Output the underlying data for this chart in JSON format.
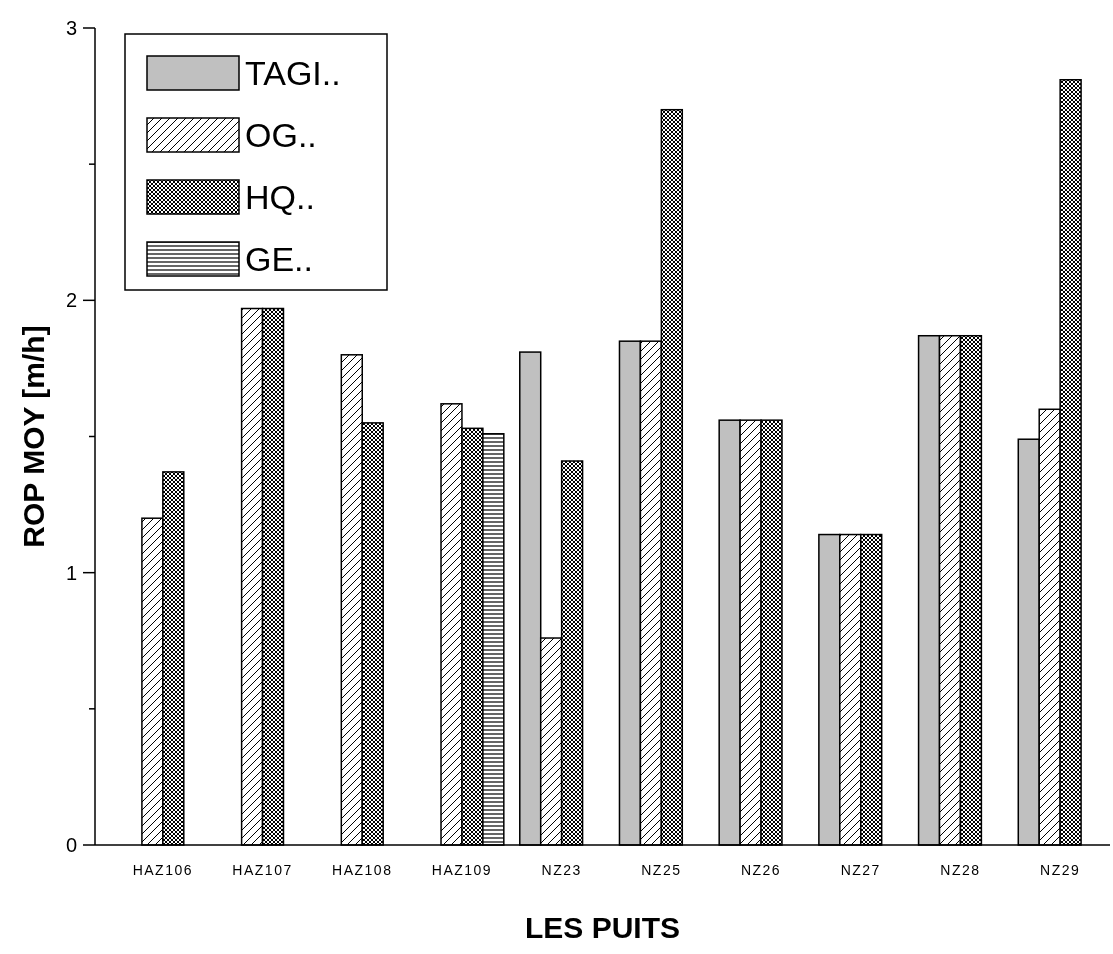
{
  "chart_data": {
    "type": "bar",
    "xlabel": "LES PUITS",
    "ylabel": "ROP MOY [m/h]",
    "categories": [
      "HAZ106",
      "HAZ107",
      "HAZ108",
      "HAZ109",
      "NZ23",
      "NZ25",
      "NZ26",
      "NZ27",
      "NZ28",
      "NZ29"
    ],
    "series": [
      {
        "name": "TAGI..",
        "color": "#c0c0c0",
        "values": [
          null,
          null,
          null,
          null,
          1.81,
          1.85,
          1.56,
          1.14,
          1.87,
          1.49
        ]
      },
      {
        "name": "OG..",
        "color": "#000000",
        "values": [
          1.2,
          1.97,
          1.8,
          1.62,
          0.76,
          1.85,
          1.56,
          1.14,
          1.87,
          1.6
        ]
      },
      {
        "name": "HQ..",
        "color": "#000000",
        "values": [
          1.37,
          1.97,
          1.55,
          1.53,
          1.41,
          2.7,
          1.56,
          1.14,
          1.87,
          2.81
        ]
      },
      {
        "name": "GE..",
        "color": "#000000",
        "values": [
          null,
          null,
          null,
          1.51,
          null,
          null,
          null,
          null,
          null,
          null
        ]
      }
    ],
    "ylim": [
      0,
      3
    ],
    "yticks": [
      0,
      {
        "value": 0.5,
        "label": null
      },
      1,
      {
        "value": 1.5,
        "label": null
      },
      2,
      {
        "value": 2.5,
        "label": null
      },
      3
    ],
    "grid": false,
    "legend": "top left"
  }
}
